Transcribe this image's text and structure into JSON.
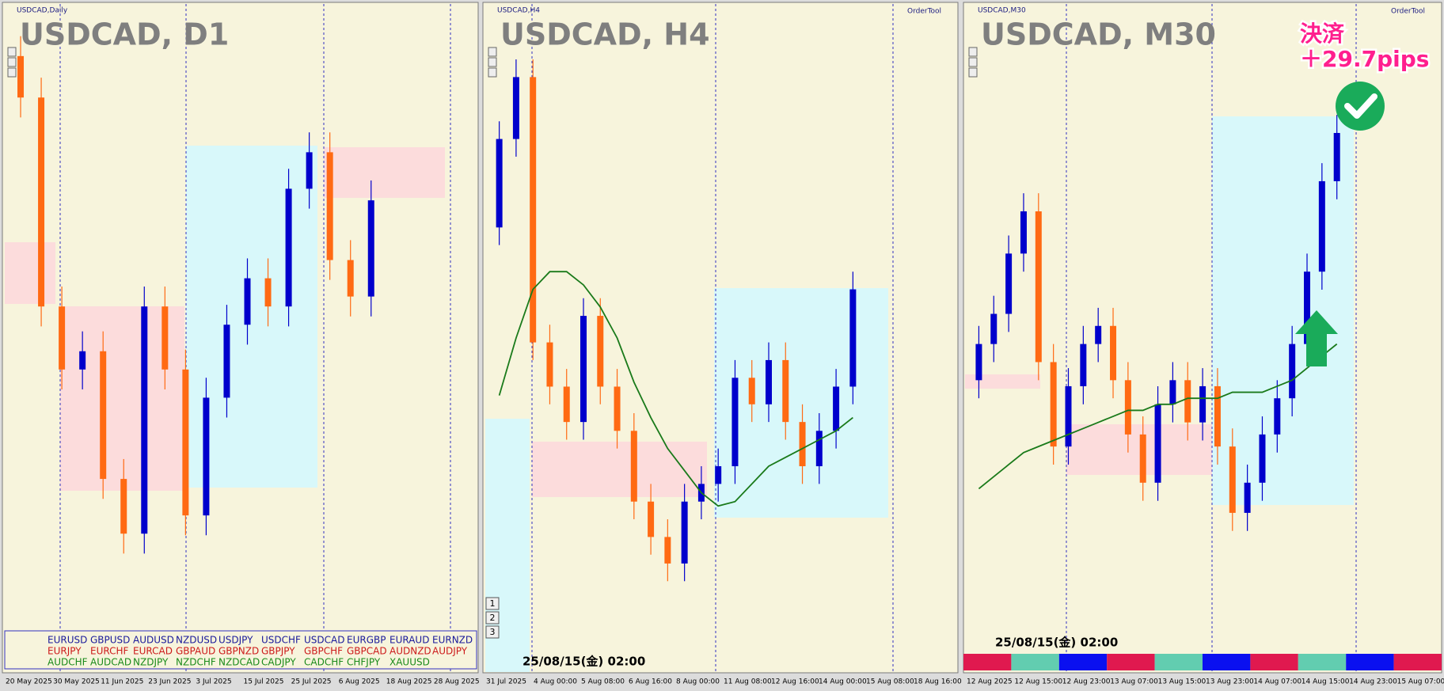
{
  "chart_data": [
    {
      "type": "candlestick",
      "title": "USDCAD, D1",
      "caption": "USDCAD,Daily",
      "x_labels": [
        "20 May 2025",
        "30 May 2025",
        "11 Jun 2025",
        "23 Jun 2025",
        "3 Jul 2025",
        "15 Jul 2025",
        "25 Jul 2025",
        "6 Aug 2025",
        "18 Aug 2025",
        "28 Aug 2025"
      ],
      "open": [
        1.387,
        1.3845,
        1.3719,
        1.3681,
        1.3692,
        1.3615,
        1.3582,
        1.3719,
        1.3681,
        1.3593,
        1.3664,
        1.3708,
        1.3736,
        1.3719,
        1.379,
        1.3812,
        1.3747,
        1.3725
      ],
      "high": [
        1.3882,
        1.3857,
        1.3731,
        1.3704,
        1.3704,
        1.3627,
        1.3731,
        1.3731,
        1.3693,
        1.3676,
        1.372,
        1.3748,
        1.3748,
        1.3802,
        1.3824,
        1.3824,
        1.3759,
        1.3795
      ],
      "low": [
        1.3833,
        1.3707,
        1.3669,
        1.3669,
        1.3603,
        1.357,
        1.357,
        1.3669,
        1.3581,
        1.3581,
        1.3652,
        1.3696,
        1.3707,
        1.3707,
        1.3778,
        1.3735,
        1.3713,
        1.3713
      ],
      "close": [
        1.3845,
        1.3719,
        1.3681,
        1.3692,
        1.3615,
        1.3582,
        1.3719,
        1.3681,
        1.3593,
        1.3664,
        1.3708,
        1.3736,
        1.3719,
        1.379,
        1.3812,
        1.3747,
        1.3725,
        1.3783
      ],
      "ylim": [
        1.35,
        1.39
      ],
      "up_color": "#0000cc",
      "down_color": "#ff6a13"
    },
    {
      "type": "candlestick",
      "title": "USDCAD, H4",
      "caption": "USDCAD,H4",
      "x_labels": [
        "31 Jul 2025",
        "4 Aug 00:00",
        "5 Aug 08:00",
        "6 Aug 16:00",
        "8 Aug 00:00",
        "11 Aug 08:00",
        "12 Aug 16:00",
        "14 Aug 00:00",
        "15 Aug 08:00",
        "18 Aug 16:00"
      ],
      "open": [
        1.38,
        1.382,
        1.3834,
        1.3774,
        1.3764,
        1.3756,
        1.378,
        1.3764,
        1.3754,
        1.3738,
        1.373,
        1.3724,
        1.3738,
        1.3742,
        1.3746,
        1.3766,
        1.376,
        1.377,
        1.3756,
        1.3746,
        1.3754,
        1.3764
      ],
      "high": [
        1.3824,
        1.3838,
        1.3838,
        1.3778,
        1.3768,
        1.3784,
        1.3784,
        1.3768,
        1.3758,
        1.3742,
        1.3734,
        1.3742,
        1.3746,
        1.375,
        1.377,
        1.377,
        1.3774,
        1.3774,
        1.376,
        1.3758,
        1.3768,
        1.379
      ],
      "low": [
        1.3796,
        1.3816,
        1.377,
        1.376,
        1.3752,
        1.3752,
        1.376,
        1.375,
        1.3734,
        1.3726,
        1.372,
        1.372,
        1.3734,
        1.3738,
        1.3742,
        1.3756,
        1.3756,
        1.3752,
        1.3742,
        1.3742,
        1.375,
        1.376
      ],
      "close": [
        1.382,
        1.3834,
        1.3774,
        1.3764,
        1.3756,
        1.378,
        1.3764,
        1.3754,
        1.3738,
        1.373,
        1.3724,
        1.3738,
        1.3742,
        1.3746,
        1.3766,
        1.376,
        1.377,
        1.3756,
        1.3746,
        1.3754,
        1.3764,
        1.3786
      ],
      "ma": [
        1.3762,
        1.3775,
        1.3786,
        1.379,
        1.379,
        1.3787,
        1.3782,
        1.3775,
        1.3765,
        1.3757,
        1.375,
        1.3745,
        1.374,
        1.3737,
        1.3738,
        1.3742,
        1.3746,
        1.3748,
        1.375,
        1.3752,
        1.3754,
        1.3757
      ],
      "ylim": [
        1.37,
        1.385
      ],
      "up_color": "#0000cc",
      "down_color": "#ff6a13",
      "ma_color": "#1a7a1a"
    },
    {
      "type": "candlestick",
      "title": "USDCAD, M30",
      "caption": "USDCAD,M30",
      "x_labels": [
        "12 Aug 2025",
        "12 Aug 15:00",
        "12 Aug 23:00",
        "13 Aug 07:00",
        "13 Aug 15:00",
        "13 Aug 23:00",
        "14 Aug 07:00",
        "14 Aug 15:00",
        "14 Aug 23:00",
        "15 Aug 07:00"
      ],
      "open": [
        1.3728,
        1.3734,
        1.3739,
        1.3749,
        1.3756,
        1.3731,
        1.3717,
        1.3727,
        1.3734,
        1.3737,
        1.3728,
        1.3719,
        1.3711,
        1.3724,
        1.3728,
        1.3721,
        1.3727,
        1.3717,
        1.3706,
        1.3711,
        1.3719,
        1.3725,
        1.3734,
        1.3746,
        1.3761
      ],
      "high": [
        1.3737,
        1.3742,
        1.3752,
        1.3759,
        1.3759,
        1.3734,
        1.373,
        1.3737,
        1.374,
        1.374,
        1.3731,
        1.3722,
        1.3727,
        1.3731,
        1.3731,
        1.373,
        1.373,
        1.372,
        1.3714,
        1.3722,
        1.3728,
        1.3737,
        1.3749,
        1.3764,
        1.3772
      ],
      "low": [
        1.3725,
        1.3731,
        1.3736,
        1.3746,
        1.3728,
        1.3714,
        1.3714,
        1.3724,
        1.3731,
        1.3725,
        1.3716,
        1.3708,
        1.3708,
        1.3721,
        1.3718,
        1.3718,
        1.3714,
        1.3703,
        1.3703,
        1.3708,
        1.3716,
        1.3722,
        1.3731,
        1.3743,
        1.3758
      ],
      "close": [
        1.3734,
        1.3739,
        1.3749,
        1.3756,
        1.3731,
        1.3717,
        1.3727,
        1.3734,
        1.3737,
        1.3728,
        1.3719,
        1.3711,
        1.3724,
        1.3728,
        1.3721,
        1.3727,
        1.3717,
        1.3706,
        1.3711,
        1.3719,
        1.3725,
        1.3734,
        1.3746,
        1.3761,
        1.3769
      ],
      "ma": [
        1.371,
        1.3712,
        1.3714,
        1.3716,
        1.3717,
        1.3718,
        1.3719,
        1.372,
        1.3721,
        1.3722,
        1.3723,
        1.3723,
        1.3724,
        1.3724,
        1.3725,
        1.3725,
        1.3725,
        1.3726,
        1.3726,
        1.3726,
        1.3727,
        1.3728,
        1.373,
        1.3732,
        1.3734
      ],
      "ylim": [
        1.368,
        1.379
      ],
      "up_color": "#0000cc",
      "down_color": "#ff6a13",
      "ma_color": "#1a7a1a"
    }
  ],
  "ui": {
    "order_tool": "OrderTool",
    "timestamp": "25/08/15(金) 02:00",
    "settle_label": "決済",
    "settle_pips": "＋29.7pips",
    "buttons": [
      "1",
      "2",
      "3"
    ],
    "symbols": [
      [
        "EURUSD",
        "GBPUSD",
        "AUDUSD",
        "NZDUSD",
        "USDJPY",
        "USDCHF",
        "USDCAD",
        "EURGBP",
        "EURAUD",
        "EURNZD"
      ],
      [
        "EURJPY",
        "EURCHF",
        "EURCAD",
        "GBPAUD",
        "GBPNZD",
        "GBPJPY",
        "GBPCHF",
        "GBPCAD",
        "AUDNZD",
        "AUDJPY"
      ],
      [
        "AUDCHF",
        "AUDCAD",
        "NZDJPY",
        "NZDCHF",
        "NZDCAD",
        "CADJPY",
        "CADCHF",
        "CHFJPY",
        "XAUUSD"
      ]
    ]
  }
}
